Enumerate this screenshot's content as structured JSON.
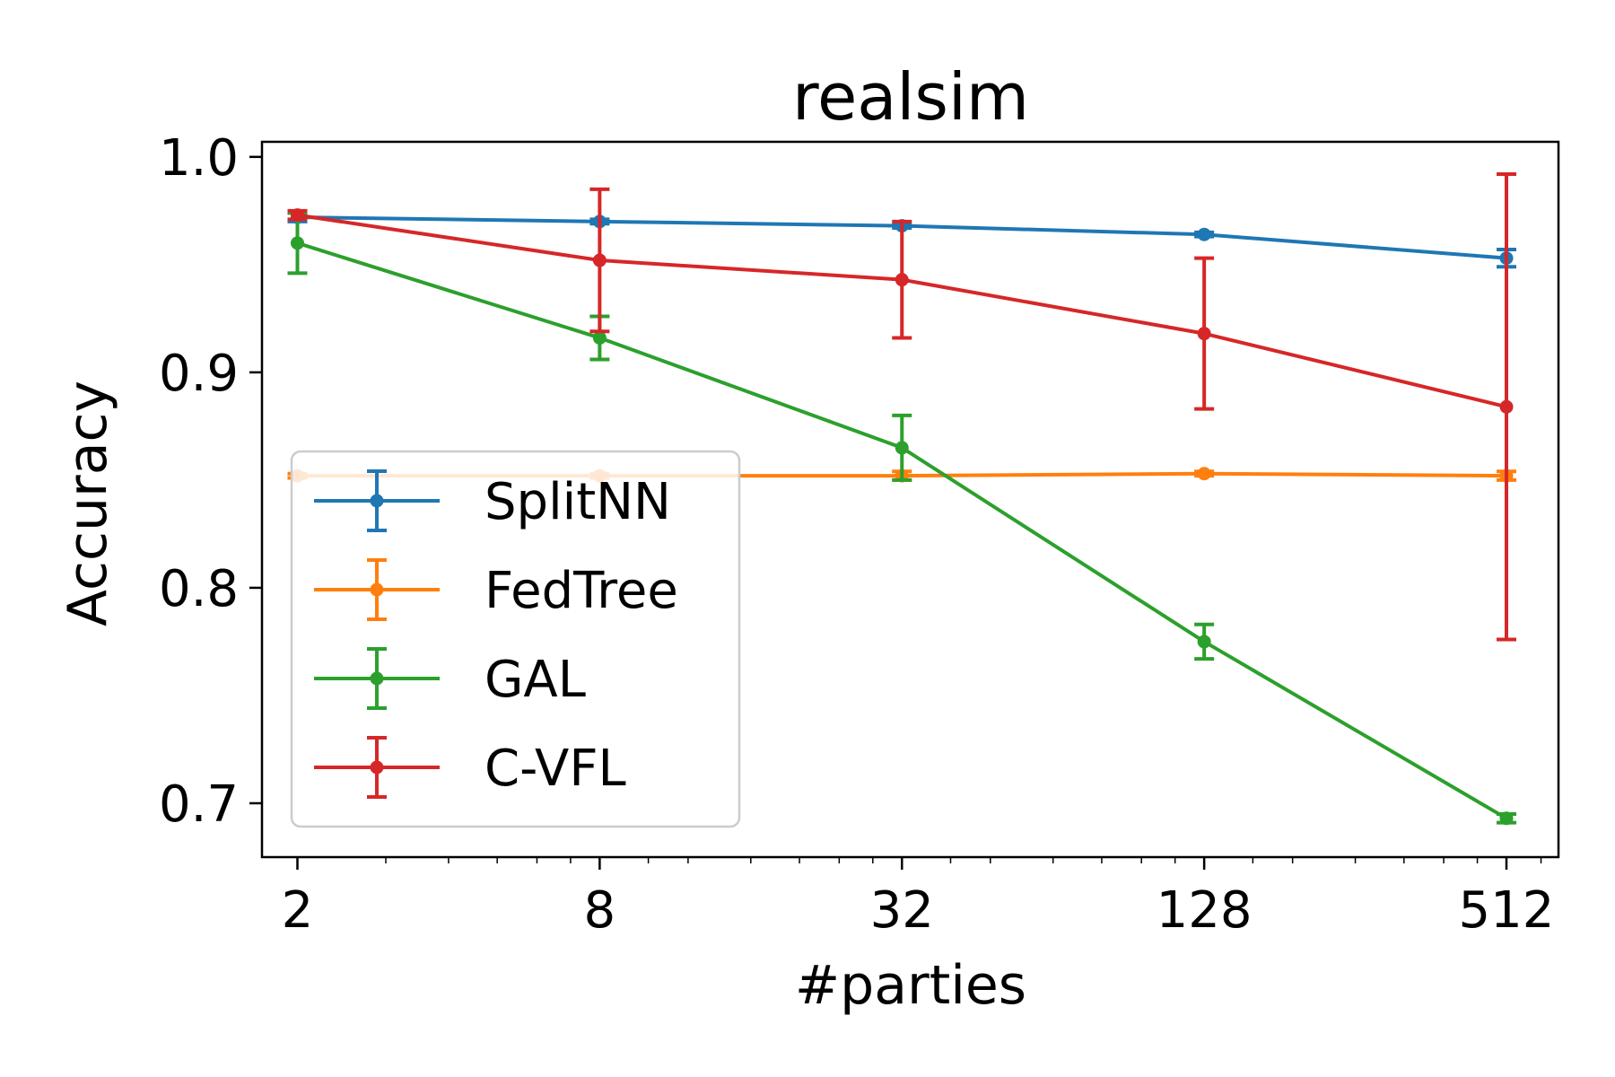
{
  "chart_data": {
    "type": "line",
    "title": "realsim",
    "xlabel": "#parties",
    "ylabel": "Accuracy",
    "x_scale": "log2",
    "x": [
      2,
      8,
      32,
      128,
      512
    ],
    "x_tick_labels": [
      "2",
      "8",
      "32",
      "128",
      "512"
    ],
    "xlim": [
      1.7,
      650
    ],
    "ylim": [
      0.675,
      1.007
    ],
    "y_ticks": [
      0.7,
      0.8,
      0.9,
      1.0
    ],
    "y_tick_labels": [
      "0.7",
      "0.8",
      "0.9",
      "1.0"
    ],
    "grid": false,
    "legend_position": "lower-left",
    "series": [
      {
        "name": "SplitNN",
        "color": "#1f77b4",
        "values": [
          0.972,
          0.97,
          0.968,
          0.964,
          0.953
        ],
        "errors": [
          0.002,
          0.001,
          0.001,
          0.001,
          0.004
        ]
      },
      {
        "name": "FedTree",
        "color": "#ff7f0e",
        "values": [
          0.852,
          0.852,
          0.852,
          0.853,
          0.852
        ],
        "errors": [
          0.001,
          0.001,
          0.002,
          0.001,
          0.002
        ]
      },
      {
        "name": "GAL",
        "color": "#2ca02c",
        "values": [
          0.96,
          0.916,
          0.865,
          0.775,
          0.693
        ],
        "errors": [
          0.014,
          0.01,
          0.015,
          0.008,
          0.002
        ]
      },
      {
        "name": "C-VFL",
        "color": "#d62728",
        "values": [
          0.973,
          0.952,
          0.943,
          0.918,
          0.884
        ],
        "errors": [
          0.002,
          0.033,
          0.027,
          0.035,
          0.108
        ]
      }
    ]
  }
}
